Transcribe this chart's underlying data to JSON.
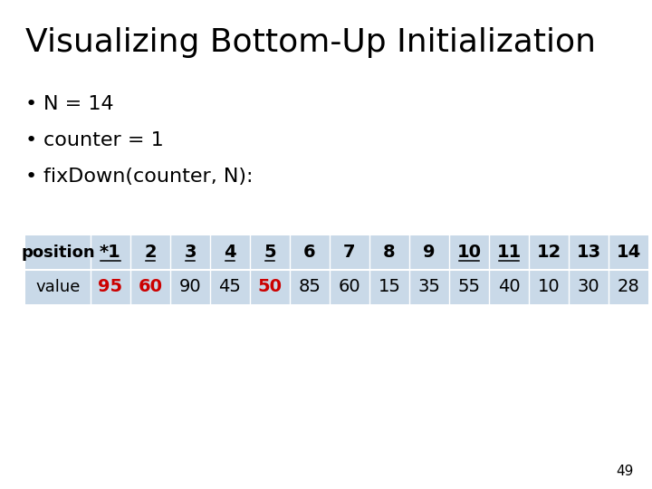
{
  "title": "Visualizing Bottom-Up Initialization",
  "bullets": [
    "N = 14",
    "counter = 1",
    "fixDown(counter, N):"
  ],
  "positions": [
    "position",
    "*1",
    "2",
    "3",
    "4",
    "5",
    "6",
    "7",
    "8",
    "9",
    "10",
    "11",
    "12",
    "13",
    "14"
  ],
  "values": [
    "value",
    "95",
    "60",
    "90",
    "45",
    "50",
    "85",
    "60",
    "15",
    "35",
    "55",
    "40",
    "10",
    "30",
    "28"
  ],
  "pos_underlined": [
    1,
    2,
    3,
    4,
    5,
    10,
    11
  ],
  "val_red": [
    1,
    2,
    5
  ],
  "table_bg": "#c9d9e8",
  "bg_color": "#ffffff",
  "page_number": "49"
}
